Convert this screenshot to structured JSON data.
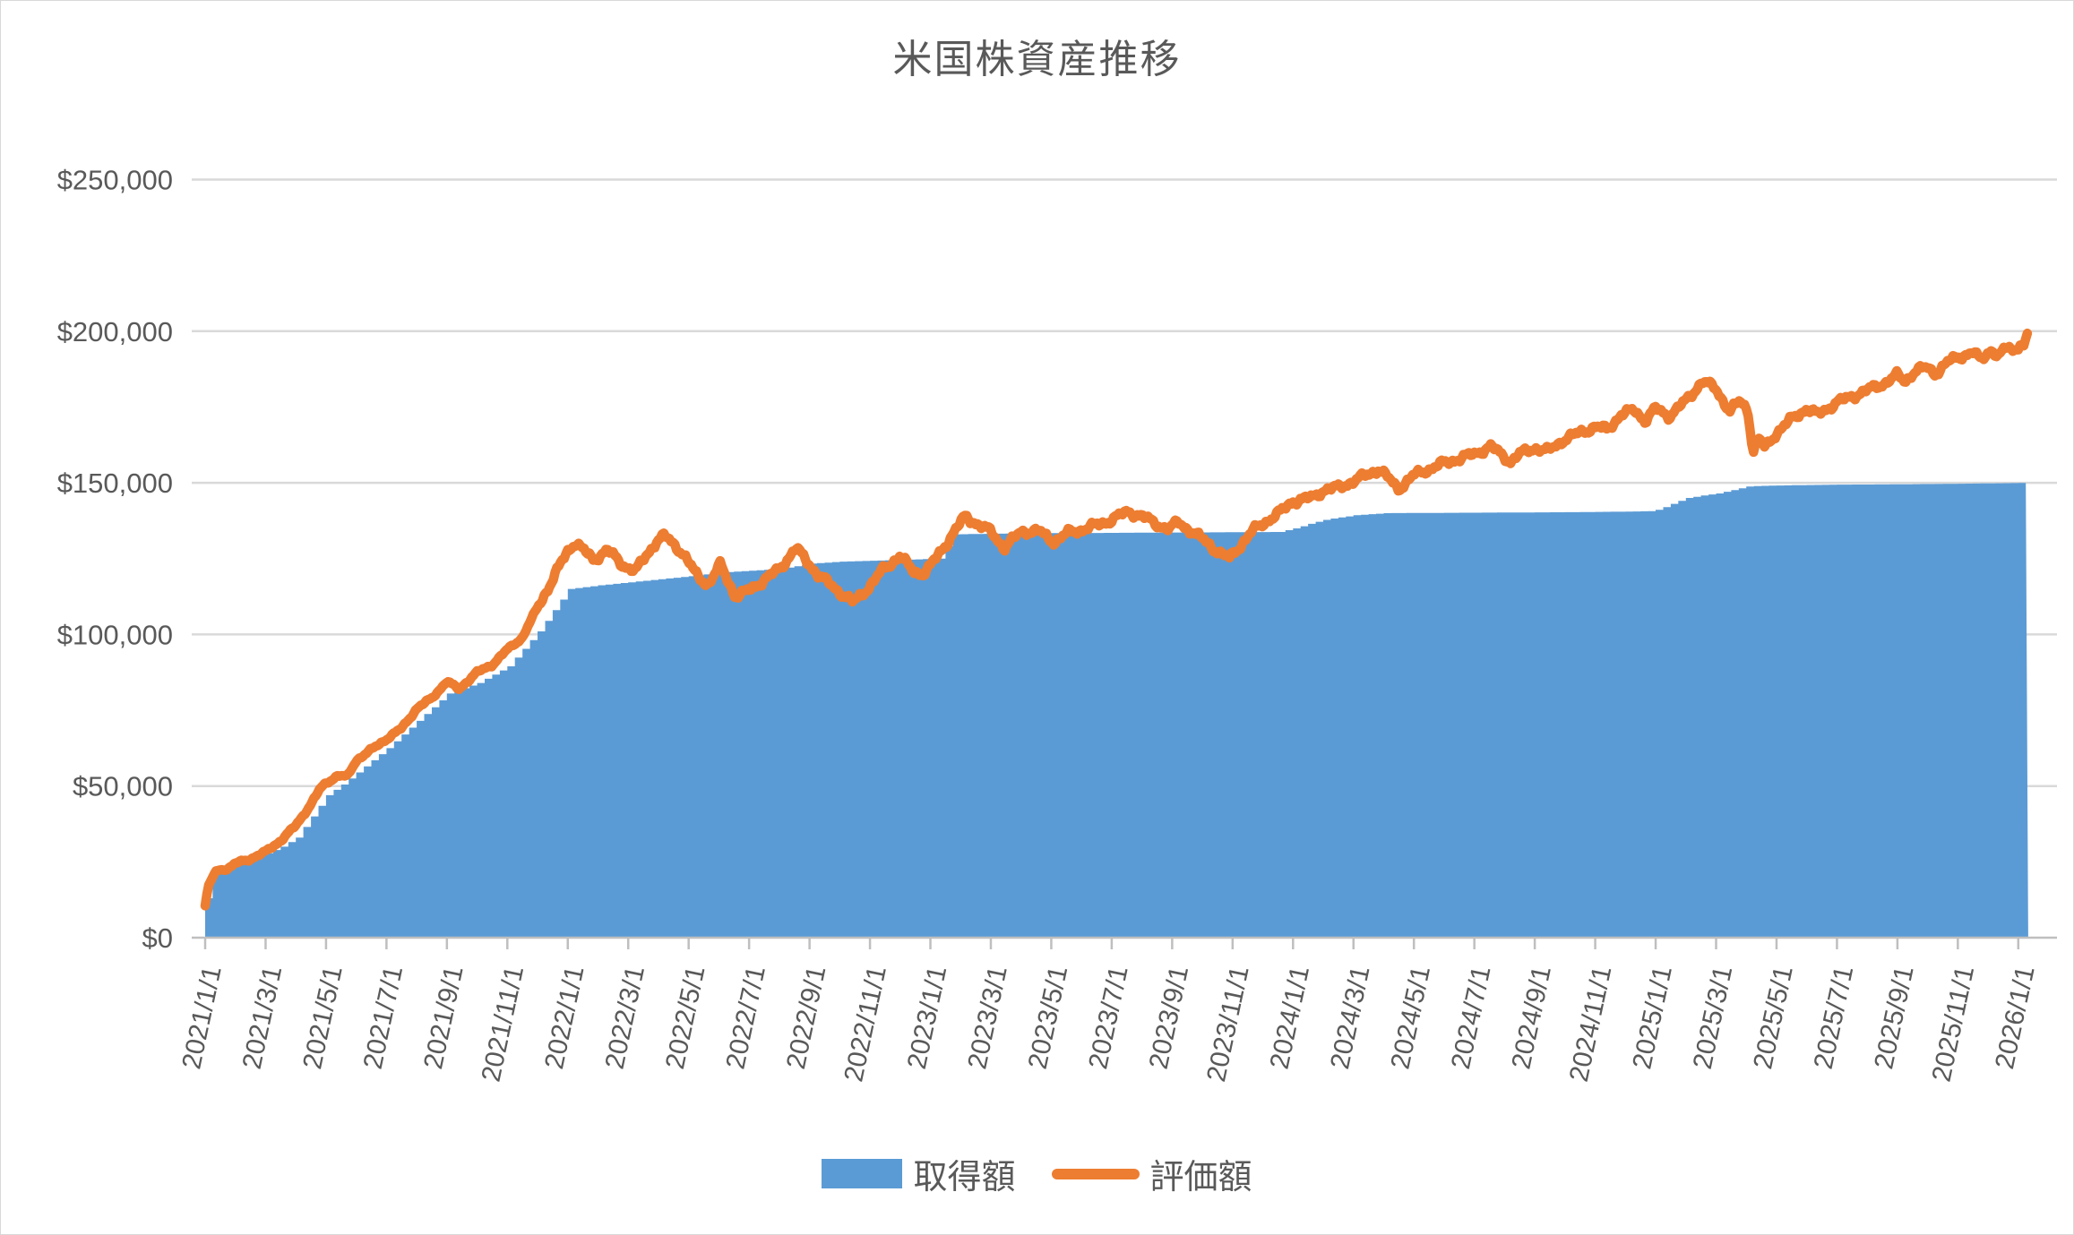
{
  "title": "米国株資産推移",
  "legend": {
    "items": [
      {
        "label": "取得額",
        "series": "acquisition",
        "swatch": "area-swatch"
      },
      {
        "label": "評価額",
        "series": "valuation",
        "swatch": "line-swatch"
      }
    ]
  },
  "colors": {
    "acquisition_fill": "#5B9BD5",
    "valuation_line": "#ED7D31",
    "gridline": "#D9D9D9",
    "axis_line": "#BFBFBF",
    "text": "#595959",
    "background": "#FFFFFF"
  },
  "y_axis": {
    "min": 0,
    "max": 250000,
    "step": 50000,
    "tick_labels": [
      "$0",
      "$50,000",
      "$100,000",
      "$150,000",
      "$200,000",
      "$250,000"
    ]
  },
  "x_axis": {
    "start": "2021/1/1",
    "end": "2026/1/1",
    "tick_interval_months": 2,
    "tick_labels": [
      "2021/1/1",
      "2021/3/1",
      "2021/5/1",
      "2021/7/1",
      "2021/9/1",
      "2021/11/1",
      "2022/1/1",
      "2022/3/1",
      "2022/5/1",
      "2022/7/1",
      "2022/9/1",
      "2022/11/1",
      "2023/1/1",
      "2023/3/1",
      "2023/5/1",
      "2023/7/1",
      "2023/9/1",
      "2023/11/1",
      "2024/1/1",
      "2024/3/1",
      "2024/5/1",
      "2024/7/1",
      "2024/9/1",
      "2024/11/1",
      "2025/1/1",
      "2025/3/1",
      "2025/5/1",
      "2025/7/1",
      "2025/9/1",
      "2025/11/1",
      "2026/1/1"
    ]
  },
  "chart_data": {
    "type": "area+line",
    "title": "米国株資産推移",
    "x_unit": "months_since_2021-01-01",
    "ylim": [
      0,
      250000
    ],
    "grid": "horizontal",
    "legend_position": "bottom",
    "series": [
      {
        "name": "取得額",
        "type": "area",
        "color": "#5B9BD5",
        "points": [
          [
            0,
            13000
          ],
          [
            0.08,
            22500
          ],
          [
            0.5,
            23500
          ],
          [
            1,
            25000
          ],
          [
            2,
            27800
          ],
          [
            2.5,
            30000
          ],
          [
            3,
            33000
          ],
          [
            3.5,
            40000
          ],
          [
            4,
            47000
          ],
          [
            4.5,
            50500
          ],
          [
            5,
            54500
          ],
          [
            6,
            62500
          ],
          [
            7,
            71500
          ],
          [
            8,
            80500
          ],
          [
            9,
            84000
          ],
          [
            10,
            89500
          ],
          [
            11,
            101000
          ],
          [
            11.5,
            108000
          ],
          [
            12,
            115000
          ],
          [
            13,
            116200
          ],
          [
            14,
            117200
          ],
          [
            15,
            118200
          ],
          [
            16,
            119200
          ],
          [
            17,
            120400
          ],
          [
            18,
            121000
          ],
          [
            19,
            121600
          ],
          [
            20,
            123400
          ],
          [
            21,
            124000
          ],
          [
            22,
            124300
          ],
          [
            23,
            124600
          ],
          [
            24,
            124900
          ],
          [
            24.4,
            125100
          ],
          [
            24.6,
            133000
          ],
          [
            26,
            133200
          ],
          [
            28,
            133400
          ],
          [
            30,
            133500
          ],
          [
            32,
            133600
          ],
          [
            34,
            133700
          ],
          [
            35.5,
            133800
          ],
          [
            36.1,
            135200
          ],
          [
            36.6,
            136800
          ],
          [
            37.1,
            138000
          ],
          [
            38,
            139300
          ],
          [
            39,
            140000
          ],
          [
            41,
            140100
          ],
          [
            43,
            140200
          ],
          [
            45,
            140300
          ],
          [
            47,
            140500
          ],
          [
            47.9,
            140700
          ],
          [
            48.25,
            142000
          ],
          [
            48.6,
            143500
          ],
          [
            49,
            145000
          ],
          [
            49.5,
            145800
          ],
          [
            50,
            146500
          ],
          [
            50.6,
            147800
          ],
          [
            51,
            148800
          ],
          [
            51.5,
            149000
          ],
          [
            52.5,
            149200
          ],
          [
            54,
            149400
          ],
          [
            56,
            149500
          ],
          [
            58,
            149700
          ],
          [
            60.33,
            150000
          ]
        ]
      },
      {
        "name": "評価額",
        "type": "line",
        "color": "#ED7D31",
        "points": [
          [
            0,
            10500
          ],
          [
            0.1,
            17000
          ],
          [
            0.35,
            22000
          ],
          [
            0.8,
            23000
          ],
          [
            1,
            24500
          ],
          [
            1.5,
            26000
          ],
          [
            2,
            28300
          ],
          [
            2.5,
            32000
          ],
          [
            3,
            37000
          ],
          [
            3.5,
            44000
          ],
          [
            3.8,
            49000
          ],
          [
            4,
            51000
          ],
          [
            4.4,
            53500
          ],
          [
            4.7,
            53000
          ],
          [
            5,
            58500
          ],
          [
            5.5,
            62000
          ],
          [
            6,
            65500
          ],
          [
            6.5,
            69000
          ],
          [
            7,
            75500
          ],
          [
            7.5,
            79000
          ],
          [
            8,
            84500
          ],
          [
            8.4,
            82000
          ],
          [
            9,
            87500
          ],
          [
            9.5,
            90000
          ],
          [
            10,
            95000
          ],
          [
            10.5,
            99000
          ],
          [
            11,
            109000
          ],
          [
            11.5,
            118000
          ],
          [
            11.8,
            124000
          ],
          [
            12,
            127500
          ],
          [
            12.25,
            130500
          ],
          [
            12.85,
            124500
          ],
          [
            13.3,
            128000
          ],
          [
            13.8,
            123000
          ],
          [
            14.25,
            121000
          ],
          [
            14.95,
            131000
          ],
          [
            15.2,
            132500
          ],
          [
            15.8,
            127000
          ],
          [
            16.3,
            119000
          ],
          [
            16.65,
            116500
          ],
          [
            17.05,
            123000
          ],
          [
            17.55,
            112500
          ],
          [
            18,
            114500
          ],
          [
            18.5,
            118000
          ],
          [
            19,
            121500
          ],
          [
            19.55,
            128500
          ],
          [
            20.3,
            119500
          ],
          [
            21,
            114000
          ],
          [
            21.45,
            110500
          ],
          [
            22,
            116000
          ],
          [
            22.4,
            121000
          ],
          [
            23,
            126000
          ],
          [
            23.4,
            121000
          ],
          [
            23.75,
            120000
          ],
          [
            24,
            122500
          ],
          [
            24.6,
            131000
          ],
          [
            25.15,
            139000
          ],
          [
            25.7,
            135500
          ],
          [
            26,
            134000
          ],
          [
            26.45,
            128500
          ],
          [
            27,
            134000
          ],
          [
            27.6,
            134000
          ],
          [
            28.1,
            130500
          ],
          [
            28.55,
            133500
          ],
          [
            29,
            134500
          ],
          [
            29.8,
            137000
          ],
          [
            30.55,
            140500
          ],
          [
            31,
            139000
          ],
          [
            31.55,
            136000
          ],
          [
            31.9,
            134800
          ],
          [
            32.2,
            137000
          ],
          [
            33,
            131500
          ],
          [
            33.55,
            127000
          ],
          [
            33.9,
            125000
          ],
          [
            34.35,
            130500
          ],
          [
            34.65,
            134000
          ],
          [
            35,
            136500
          ],
          [
            35.6,
            140500
          ],
          [
            36,
            144000
          ],
          [
            36.6,
            145000
          ],
          [
            37,
            147500
          ],
          [
            37.5,
            148500
          ],
          [
            38,
            150500
          ],
          [
            38.85,
            154500
          ],
          [
            39.5,
            148000
          ],
          [
            40,
            152500
          ],
          [
            40.5,
            154500
          ],
          [
            41,
            156500
          ],
          [
            41.5,
            158000
          ],
          [
            42,
            159500
          ],
          [
            42.55,
            162000
          ],
          [
            43.2,
            157000
          ],
          [
            43.5,
            159500
          ],
          [
            44,
            161500
          ],
          [
            44.45,
            160500
          ],
          [
            45,
            164500
          ],
          [
            45.5,
            166500
          ],
          [
            46,
            168500
          ],
          [
            46.4,
            167500
          ],
          [
            46.85,
            172500
          ],
          [
            47.3,
            174000
          ],
          [
            47.65,
            170500
          ],
          [
            48,
            174500
          ],
          [
            48.45,
            172000
          ],
          [
            49,
            177000
          ],
          [
            49.55,
            183500
          ],
          [
            50,
            181000
          ],
          [
            50.45,
            173500
          ],
          [
            50.8,
            177000
          ],
          [
            51.05,
            174000
          ],
          [
            51.22,
            160500
          ],
          [
            51.42,
            164500
          ],
          [
            51.62,
            161500
          ],
          [
            52,
            166500
          ],
          [
            52.5,
            171000
          ],
          [
            53,
            174500
          ],
          [
            53.35,
            172500
          ],
          [
            54,
            176500
          ],
          [
            54.5,
            178500
          ],
          [
            55,
            180500
          ],
          [
            55.6,
            183000
          ],
          [
            56,
            185500
          ],
          [
            56.25,
            183500
          ],
          [
            56.6,
            187000
          ],
          [
            57,
            188000
          ],
          [
            57.25,
            186000
          ],
          [
            57.7,
            190000
          ],
          [
            58,
            191500
          ],
          [
            58.5,
            193000
          ],
          [
            58.75,
            190500
          ],
          [
            59.1,
            194000
          ],
          [
            59.35,
            191500
          ],
          [
            59.65,
            195000
          ],
          [
            59.85,
            193500
          ],
          [
            60.05,
            196000
          ],
          [
            60.2,
            195000
          ],
          [
            60.33,
            199500
          ]
        ]
      }
    ]
  }
}
